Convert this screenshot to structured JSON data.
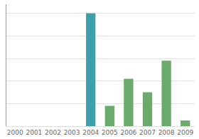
{
  "chart_data": {
    "type": "bar",
    "categories": [
      "2000",
      "2001",
      "2002",
      "2003",
      "2004",
      "2005",
      "2006",
      "2007",
      "2008",
      "2009"
    ],
    "values": [
      0,
      0,
      0,
      0,
      100,
      18,
      42,
      30,
      58,
      5
    ],
    "colors": [
      "#3d9faa",
      "#3d9faa",
      "#3d9faa",
      "#3d9faa",
      "#3d9faa",
      "#6aaa6a",
      "#6aaa6a",
      "#6aaa6a",
      "#6aaa6a",
      "#6aaa6a"
    ],
    "ylim": [
      0,
      108
    ],
    "yticks": [
      0,
      20,
      40,
      60,
      80,
      100
    ],
    "grid": true,
    "tick_labels": "x"
  }
}
